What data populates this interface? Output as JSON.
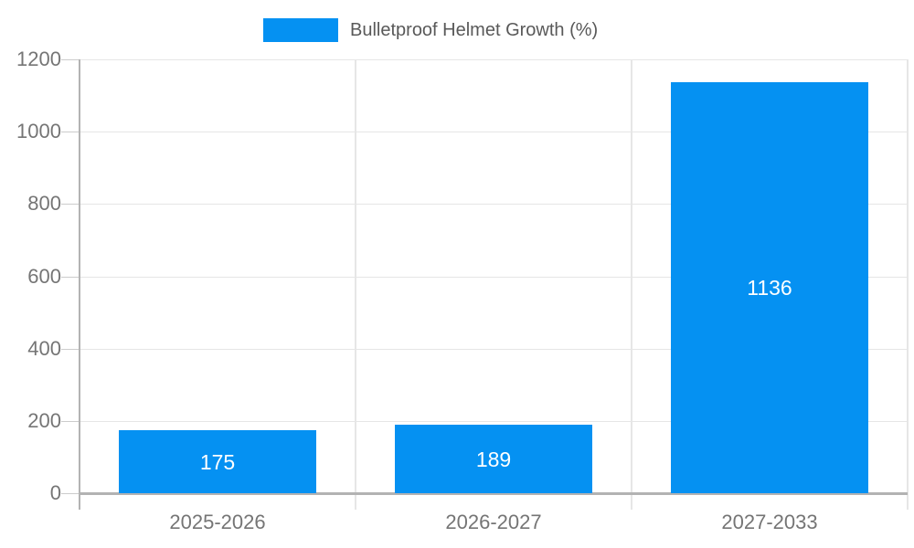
{
  "legend": {
    "series_label": "Bulletproof Helmet Growth (%)"
  },
  "chart_data": {
    "type": "bar",
    "title": "Bulletproof Helmet Growth (%)",
    "categories": [
      "2025-2026",
      "2026-2027",
      "2027-2033"
    ],
    "series": [
      {
        "name": "Bulletproof Helmet Growth (%)",
        "values": [
          175,
          189,
          1136
        ]
      }
    ],
    "value_labels": [
      "175",
      "189",
      "1136"
    ],
    "xlabel": "",
    "ylabel": "",
    "ylim": [
      0,
      1200
    ],
    "yticks": [
      0,
      200,
      400,
      600,
      800,
      1000,
      1200
    ],
    "grid": true,
    "legend_position": "top-center",
    "colors": {
      "bar": "#0591f2",
      "value_label": "#ffffff",
      "axis_text": "#757575",
      "legend_text": "#595959",
      "gridline": "#e6e6e6",
      "axis_line": "#b3b3b3",
      "tick_line": "#cccccc",
      "background": "#ffffff"
    }
  }
}
